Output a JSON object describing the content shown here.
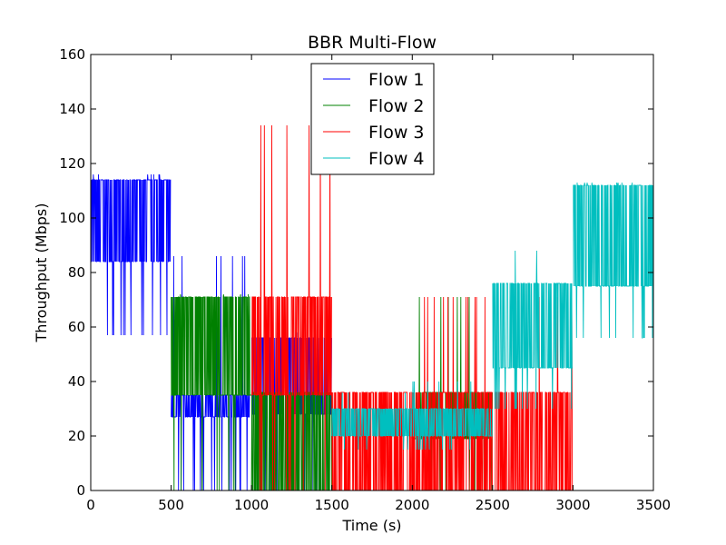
{
  "chart_data": {
    "type": "line",
    "title": "BBR Multi-Flow",
    "xlabel": "Time (s)",
    "ylabel": "Throughput (Mbps)",
    "xlim": [
      0,
      3500
    ],
    "ylim": [
      0,
      160
    ],
    "xticks": [
      "0",
      "500",
      "1000",
      "1500",
      "2000",
      "2500",
      "3000",
      "3500"
    ],
    "yticks": [
      "0",
      "20",
      "40",
      "60",
      "80",
      "100",
      "120",
      "140",
      "160"
    ],
    "grid": false,
    "legend_position": "top-center",
    "series": [
      {
        "name": "Flow 1",
        "color": "#0000ff",
        "segments": [
          {
            "start": 0,
            "end": 500,
            "low": 84,
            "high": 114,
            "spike_low": 57,
            "spike_high": 116
          },
          {
            "start": 500,
            "end": 1000,
            "low": 27,
            "high": 35,
            "spike_low": 0,
            "spike_high": 86
          },
          {
            "start": 1000,
            "end": 1500,
            "low": 28,
            "high": 56,
            "spike_low": 0,
            "spike_high": 58
          }
        ]
      },
      {
        "name": "Flow 2",
        "color": "#008000",
        "segments": [
          {
            "start": 500,
            "end": 1000,
            "low": 35,
            "high": 71,
            "spike_low": 0,
            "spike_high": 72
          },
          {
            "start": 1000,
            "end": 1500,
            "low": 0,
            "high": 36,
            "spike_low": 0,
            "spike_high": 71
          },
          {
            "start": 2000,
            "end": 2500,
            "low": 19,
            "high": 36,
            "spike_low": 0,
            "spike_high": 71
          }
        ]
      },
      {
        "name": "Flow 3",
        "color": "#ff0000",
        "segments": [
          {
            "start": 1000,
            "end": 1500,
            "low": 35,
            "high": 71,
            "spike_low": 0,
            "spike_high": 134
          },
          {
            "start": 1500,
            "end": 2000,
            "low": 0,
            "high": 36,
            "spike_low": 0,
            "spike_high": 36
          },
          {
            "start": 2000,
            "end": 2500,
            "low": 0,
            "high": 36,
            "spike_low": 0,
            "spike_high": 71
          },
          {
            "start": 2500,
            "end": 3000,
            "low": 0,
            "high": 36,
            "spike_low": 0,
            "spike_high": 71
          }
        ]
      },
      {
        "name": "Flow 4",
        "color": "#00bfbf",
        "segments": [
          {
            "start": 1500,
            "end": 2000,
            "low": 20,
            "high": 30,
            "spike_low": 15,
            "spike_high": 36
          },
          {
            "start": 2000,
            "end": 2500,
            "low": 20,
            "high": 30,
            "spike_low": 15,
            "spike_high": 40
          },
          {
            "start": 2500,
            "end": 3000,
            "low": 45,
            "high": 76,
            "spike_low": 30,
            "spike_high": 88
          },
          {
            "start": 3000,
            "end": 3500,
            "low": 75,
            "high": 112,
            "spike_low": 56,
            "spike_high": 113
          }
        ]
      }
    ]
  }
}
